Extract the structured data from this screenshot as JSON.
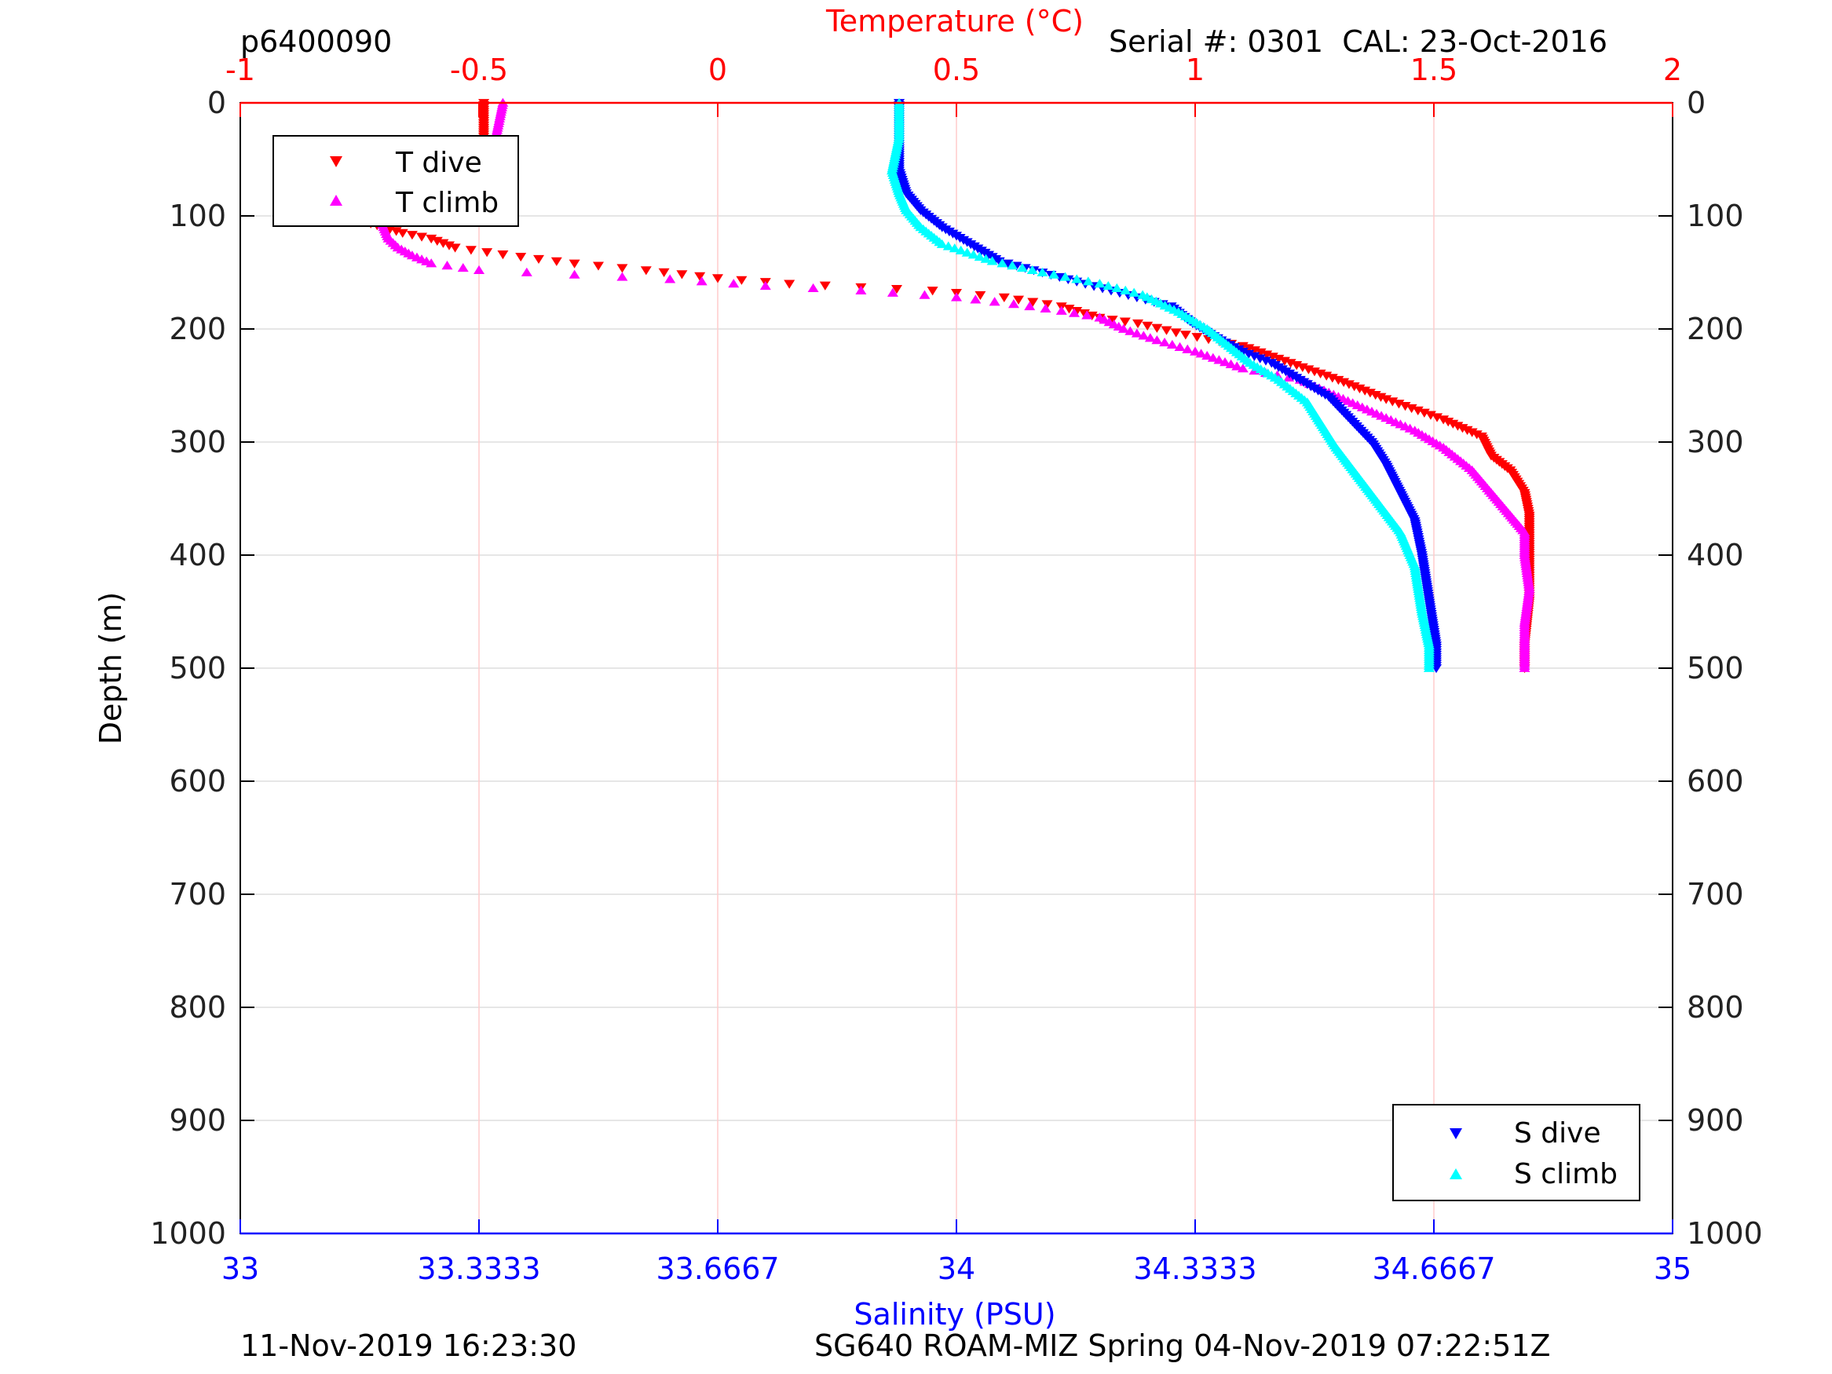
{
  "header": {
    "profile_id": "p6400090",
    "serial": "Serial #: 0301  CAL: 23-Oct-2016"
  },
  "footer": {
    "generated": "11-Nov-2019 16:23:30",
    "mission": "SG640 ROAM-MIZ Spring 04-Nov-2019 07:22:51Z"
  },
  "colors": {
    "temperature_axis": "#ff0000",
    "salinity_axis": "#0000ff",
    "t_dive": "#ff0000",
    "t_climb": "#ff00ff",
    "s_dive": "#0000ff",
    "s_climb": "#00ffff",
    "grid": "#dddddd",
    "t_grid": "#ffcccc"
  },
  "chart_data": {
    "type": "scatter",
    "ylabel": "Depth (m)",
    "ylim": [
      1000,
      0
    ],
    "yticks": [
      "0",
      "100",
      "200",
      "300",
      "400",
      "500",
      "600",
      "700",
      "800",
      "900",
      "1000"
    ],
    "y_reversed": true,
    "grid": true,
    "temperature_axis": {
      "label": "Temperature (°C)",
      "position": "top",
      "lim": [
        -1,
        2
      ],
      "ticks": [
        -1,
        -0.5,
        0,
        0.5,
        1,
        1.5,
        2
      ],
      "tick_labels": [
        "-1",
        "-0.5",
        "0",
        "0.5",
        "1",
        "1.5",
        "2"
      ]
    },
    "salinity_axis": {
      "label": "Salinity (PSU)",
      "position": "bottom",
      "lim": [
        33,
        35
      ],
      "ticks": [
        33,
        33.3333,
        33.6667,
        34,
        34.3333,
        34.6667,
        35
      ],
      "tick_labels": [
        "33",
        "33.3333",
        "33.6667",
        "34",
        "34.3333",
        "34.6667",
        "35"
      ]
    },
    "legends": [
      {
        "placement": "top-left",
        "entries": [
          "T dive",
          "T climb"
        ]
      },
      {
        "placement": "bottom-right",
        "entries": [
          "S dive",
          "S climb"
        ]
      }
    ],
    "series": [
      {
        "name": "T dive",
        "axis": "temperature",
        "marker": "triangle-down",
        "points": [
          [
            -0.49,
            0
          ],
          [
            -0.49,
            20
          ],
          [
            -0.49,
            40
          ],
          [
            -0.5,
            60
          ],
          [
            -0.62,
            80
          ],
          [
            -0.73,
            95
          ],
          [
            -0.74,
            105
          ],
          [
            -0.7,
            110
          ],
          [
            -0.66,
            115
          ],
          [
            -0.6,
            120
          ],
          [
            -0.55,
            128
          ],
          [
            -0.45,
            134
          ],
          [
            -0.3,
            142
          ],
          [
            -0.15,
            148
          ],
          [
            0,
            155
          ],
          [
            0.15,
            160
          ],
          [
            0.3,
            163
          ],
          [
            0.45,
            166
          ],
          [
            0.6,
            172
          ],
          [
            0.72,
            180
          ],
          [
            0.8,
            190
          ],
          [
            0.88,
            195
          ],
          [
            0.98,
            205
          ],
          [
            1.1,
            215
          ],
          [
            1.2,
            230
          ],
          [
            1.3,
            245
          ],
          [
            1.4,
            262
          ],
          [
            1.52,
            280
          ],
          [
            1.6,
            295
          ],
          [
            1.62,
            312
          ],
          [
            1.66,
            325
          ],
          [
            1.69,
            345
          ],
          [
            1.7,
            365
          ],
          [
            1.7,
            400
          ],
          [
            1.7,
            440
          ],
          [
            1.69,
            480
          ],
          [
            1.69,
            500
          ]
        ]
      },
      {
        "name": "T climb",
        "axis": "temperature",
        "marker": "triangle-up",
        "points": [
          [
            -0.45,
            0
          ],
          [
            -0.46,
            20
          ],
          [
            -0.47,
            40
          ],
          [
            -0.48,
            58
          ],
          [
            -0.58,
            70
          ],
          [
            -0.68,
            85
          ],
          [
            -0.71,
            100
          ],
          [
            -0.7,
            110
          ],
          [
            -0.69,
            120
          ],
          [
            -0.67,
            128
          ],
          [
            -0.64,
            135
          ],
          [
            -0.6,
            142
          ],
          [
            -0.5,
            148
          ],
          [
            -0.3,
            152
          ],
          [
            -0.1,
            156
          ],
          [
            0.1,
            162
          ],
          [
            0.3,
            166
          ],
          [
            0.5,
            172
          ],
          [
            0.62,
            178
          ],
          [
            0.72,
            184
          ],
          [
            0.8,
            190
          ],
          [
            0.85,
            200
          ],
          [
            0.92,
            210
          ],
          [
            1.0,
            220
          ],
          [
            1.1,
            235
          ],
          [
            1.22,
            245
          ],
          [
            1.3,
            260
          ],
          [
            1.38,
            275
          ],
          [
            1.46,
            290
          ],
          [
            1.52,
            305
          ],
          [
            1.58,
            325
          ],
          [
            1.62,
            345
          ],
          [
            1.66,
            365
          ],
          [
            1.69,
            380
          ],
          [
            1.69,
            400
          ],
          [
            1.7,
            430
          ],
          [
            1.69,
            460
          ],
          [
            1.69,
            500
          ]
        ]
      },
      {
        "name": "S dive",
        "axis": "salinity",
        "marker": "triangle-down",
        "points": [
          [
            33.92,
            0
          ],
          [
            33.92,
            30
          ],
          [
            33.92,
            60
          ],
          [
            33.93,
            80
          ],
          [
            33.95,
            95
          ],
          [
            33.98,
            110
          ],
          [
            34.02,
            125
          ],
          [
            34.06,
            140
          ],
          [
            34.12,
            150
          ],
          [
            34.18,
            160
          ],
          [
            34.24,
            170
          ],
          [
            34.3,
            180
          ],
          [
            34.33,
            195
          ],
          [
            34.37,
            210
          ],
          [
            34.4,
            220
          ],
          [
            34.44,
            230
          ],
          [
            34.48,
            245
          ],
          [
            34.52,
            260
          ],
          [
            34.55,
            280
          ],
          [
            34.58,
            300
          ],
          [
            34.6,
            320
          ],
          [
            34.62,
            345
          ],
          [
            34.64,
            370
          ],
          [
            34.65,
            400
          ],
          [
            34.66,
            440
          ],
          [
            34.67,
            480
          ],
          [
            34.67,
            500
          ]
        ]
      },
      {
        "name": "S climb",
        "axis": "salinity",
        "marker": "triangle-up",
        "points": [
          [
            33.92,
            0
          ],
          [
            33.92,
            30
          ],
          [
            33.91,
            60
          ],
          [
            33.92,
            80
          ],
          [
            33.93,
            95
          ],
          [
            33.95,
            110
          ],
          [
            33.98,
            125
          ],
          [
            34.05,
            140
          ],
          [
            34.12,
            150
          ],
          [
            34.2,
            160
          ],
          [
            34.26,
            170
          ],
          [
            34.31,
            185
          ],
          [
            34.35,
            200
          ],
          [
            34.38,
            215
          ],
          [
            34.41,
            230
          ],
          [
            34.45,
            245
          ],
          [
            34.49,
            265
          ],
          [
            34.51,
            285
          ],
          [
            34.53,
            305
          ],
          [
            34.56,
            330
          ],
          [
            34.59,
            355
          ],
          [
            34.62,
            380
          ],
          [
            34.64,
            410
          ],
          [
            34.65,
            450
          ],
          [
            34.66,
            480
          ],
          [
            34.66,
            500
          ]
        ]
      }
    ]
  }
}
